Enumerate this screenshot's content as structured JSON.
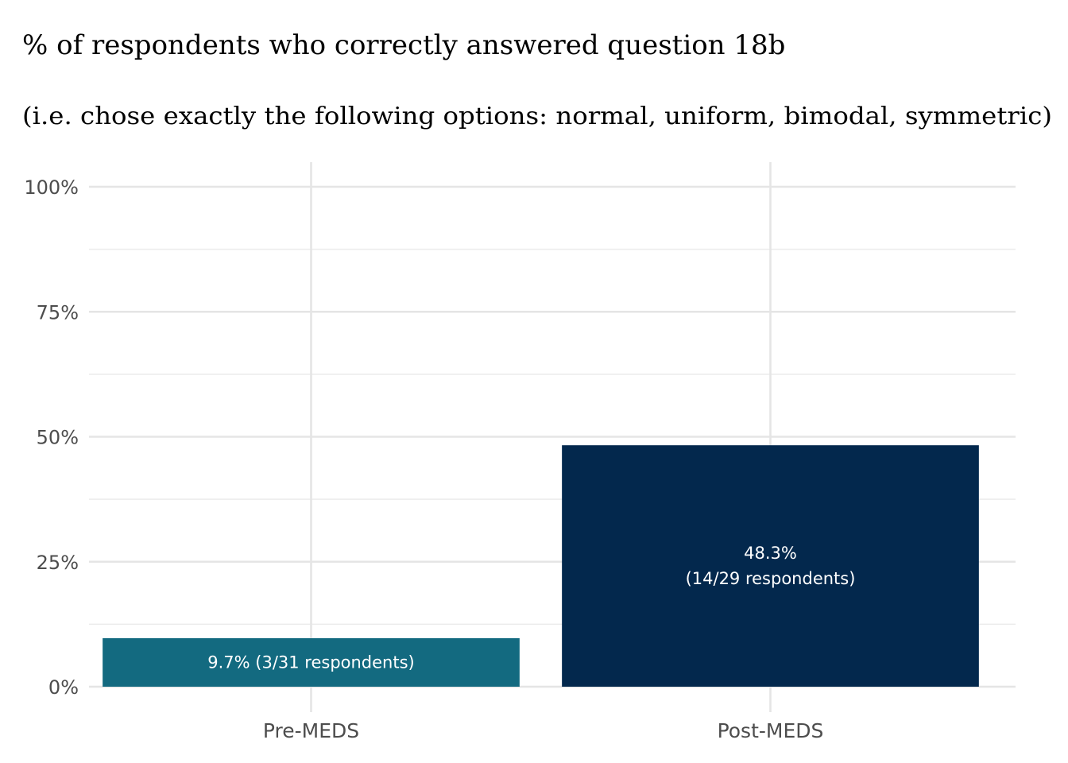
{
  "chart_data": {
    "type": "bar",
    "title": "% of respondents who correctly answered question 18b",
    "subtitle": "(i.e. chose exactly the following options: normal, uniform, bimodal, symmetric)",
    "xlabel": "",
    "ylabel": "",
    "categories": [
      "Pre-MEDS",
      "Post-MEDS"
    ],
    "values": [
      9.7,
      48.3
    ],
    "bar_labels": [
      [
        "9.7% (3/31 respondents)"
      ],
      [
        "48.3%",
        "(14/29 respondents)"
      ]
    ],
    "bar_colors": [
      "#136a80",
      "#03284d"
    ],
    "ylim": [
      0,
      100
    ],
    "y_ticks": [
      0,
      25,
      50,
      75,
      100
    ],
    "y_tick_labels": [
      "0%",
      "25%",
      "50%",
      "75%",
      "100%"
    ],
    "grid": true,
    "legend": "none"
  }
}
